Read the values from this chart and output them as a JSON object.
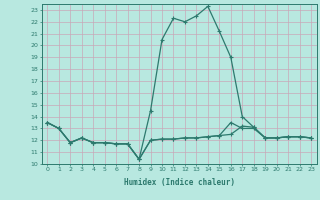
{
  "xlabel": "Humidex (Indice chaleur)",
  "line_color": "#2d7a6e",
  "bg_color": "#b8e8e0",
  "grid_color": "#d4f0ea",
  "xlim": [
    -0.5,
    23.5
  ],
  "ylim": [
    10,
    23.5
  ],
  "yticks": [
    10,
    11,
    12,
    13,
    14,
    15,
    16,
    17,
    18,
    19,
    20,
    21,
    22,
    23
  ],
  "xticks": [
    0,
    1,
    2,
    3,
    4,
    5,
    6,
    7,
    8,
    9,
    10,
    11,
    12,
    13,
    14,
    15,
    16,
    17,
    18,
    19,
    20,
    21,
    22,
    23
  ],
  "curve1_x": [
    0,
    1,
    2,
    3,
    4,
    5,
    6,
    7,
    8,
    9,
    10,
    11,
    12,
    13,
    14,
    15,
    16,
    17,
    18,
    19,
    20,
    21,
    22,
    23
  ],
  "curve1_y": [
    13.5,
    13.0,
    11.8,
    12.2,
    11.8,
    11.8,
    11.7,
    11.7,
    10.4,
    14.5,
    20.5,
    22.3,
    22.0,
    22.5,
    23.3,
    21.2,
    19.0,
    14.0,
    13.1,
    12.2,
    12.2,
    12.3,
    12.3,
    12.2
  ],
  "curve2_x": [
    0,
    1,
    2,
    3,
    4,
    5,
    6,
    7,
    8,
    9,
    10,
    11,
    12,
    13,
    14,
    15,
    16,
    17,
    18,
    19,
    20,
    21,
    22,
    23
  ],
  "curve2_y": [
    13.5,
    13.0,
    11.8,
    12.2,
    11.8,
    11.8,
    11.7,
    11.7,
    10.4,
    12.0,
    12.1,
    12.1,
    12.2,
    12.2,
    12.3,
    12.4,
    12.5,
    13.2,
    13.1,
    12.2,
    12.2,
    12.3,
    12.3,
    12.2
  ],
  "curve3_x": [
    0,
    1,
    2,
    3,
    4,
    5,
    6,
    7,
    8,
    9,
    10,
    11,
    12,
    13,
    14,
    15,
    16,
    17,
    18,
    19,
    20,
    21,
    22,
    23
  ],
  "curve3_y": [
    13.5,
    13.0,
    11.8,
    12.2,
    11.8,
    11.8,
    11.7,
    11.7,
    10.4,
    12.0,
    12.1,
    12.1,
    12.2,
    12.2,
    12.3,
    12.4,
    13.5,
    13.0,
    13.0,
    12.2,
    12.2,
    12.3,
    12.3,
    12.2
  ],
  "linewidth": 0.9,
  "markersize": 3.0,
  "marker": "+"
}
